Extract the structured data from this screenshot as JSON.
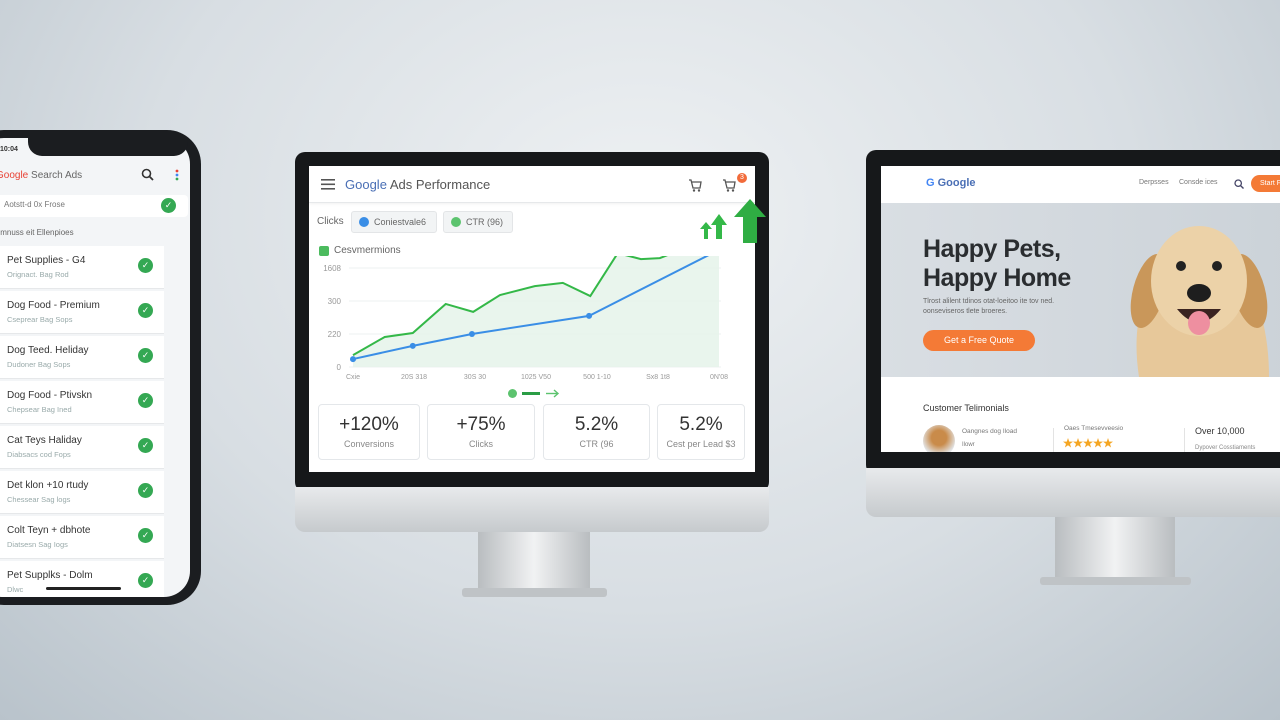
{
  "phone": {
    "time": "10:04",
    "app_title_brand": "Google",
    "app_title": "Search Ads",
    "search_value": "Aotstt-d 0x Frose",
    "section_label": "bimnuss eit Ellenpioes",
    "items": [
      {
        "title": "Pet Supplies - G4",
        "subtitle": "Orignact. Bag Rod"
      },
      {
        "title": "Dog Food - Premium",
        "subtitle": "Cseprear Bag Sops"
      },
      {
        "title": "Dog Teed. Heliday",
        "subtitle": "Dudoner Bag Sops"
      },
      {
        "title": "Dog Food - Ptivskn",
        "subtitle": "Chepsear Bag Ined"
      },
      {
        "title": "Cat Teys Haliday",
        "subtitle": "Diabsacs cod Fops"
      },
      {
        "title": "Det klon +10 rtudy",
        "subtitle": "Chessear Sag logs"
      },
      {
        "title": "Colt Teyn + dbhote",
        "subtitle": "Diatsesn Sag Iogs"
      },
      {
        "title": "Pet Supplks - Dolm",
        "subtitle": "Dlwc"
      }
    ]
  },
  "dashboard": {
    "title_brand": "Google",
    "title": "Ads Performance",
    "notification_count": "3",
    "chips": {
      "label": "Clicks",
      "chip1": "Coniestvale6",
      "chip2": "CTR (96)"
    },
    "legend": "Cesvmermions",
    "kpis": [
      {
        "value": "+120%",
        "label": "Conversions"
      },
      {
        "value": "+75%",
        "label": "Clicks"
      },
      {
        "value": "5.2%",
        "label": "CTR (96"
      },
      {
        "value": "5.2%",
        "label": "Cest per Lead $3"
      }
    ],
    "colors": {
      "green": "#34b848",
      "blue": "#3a8ee6"
    }
  },
  "chart_data": {
    "type": "line",
    "x_tick_labels": [
      "Cxie",
      "20S 318",
      "30S 30",
      "1025 V50",
      "500 1-10",
      "Sx8 1t8",
      "0N'08"
    ],
    "y_tick_labels": [
      "0",
      "220",
      "300",
      "1608"
    ],
    "grid": true,
    "series": [
      {
        "color": "#34b848",
        "fill": true,
        "x": [
          0,
          0.52,
          0.98,
          1.52,
          1.97,
          2.41,
          2.98,
          3.44,
          3.89,
          4.34,
          4.72,
          5.03,
          6
        ],
        "y": [
          0.36,
          0.91,
          1.03,
          1.91,
          1.67,
          2.18,
          2.45,
          2.55,
          2.15,
          3.45,
          3.27,
          3.3,
          4.0
        ]
      },
      {
        "color": "#3a8ee6",
        "fill": false,
        "x": [
          0,
          0.98,
          1.95,
          3.87,
          6
        ],
        "y": [
          0.24,
          0.64,
          1.0,
          1.55,
          3.55
        ]
      }
    ]
  },
  "landing": {
    "brand": "Google",
    "nav": [
      "Derpsses",
      "Consde ices"
    ],
    "cta_small": "Start Fr",
    "headline_1": "Happy Pets,",
    "headline_2": "Happy Home",
    "body": "Tlrost alilent tdinos otat-loeitoo ite tov ned. oonseviseros tlete broeres.",
    "cta": "Get a Free Quote",
    "testimonials_title": "Customer Telimonials",
    "testimonial_text": "Oangnes dog Iload",
    "testimonial_sub": "Ilowr",
    "rating_label": "Oaes Tmesevveesio",
    "stars": 5,
    "stat_value": "Over 10,000",
    "stat_label": "Dypover Cosstiaments"
  }
}
